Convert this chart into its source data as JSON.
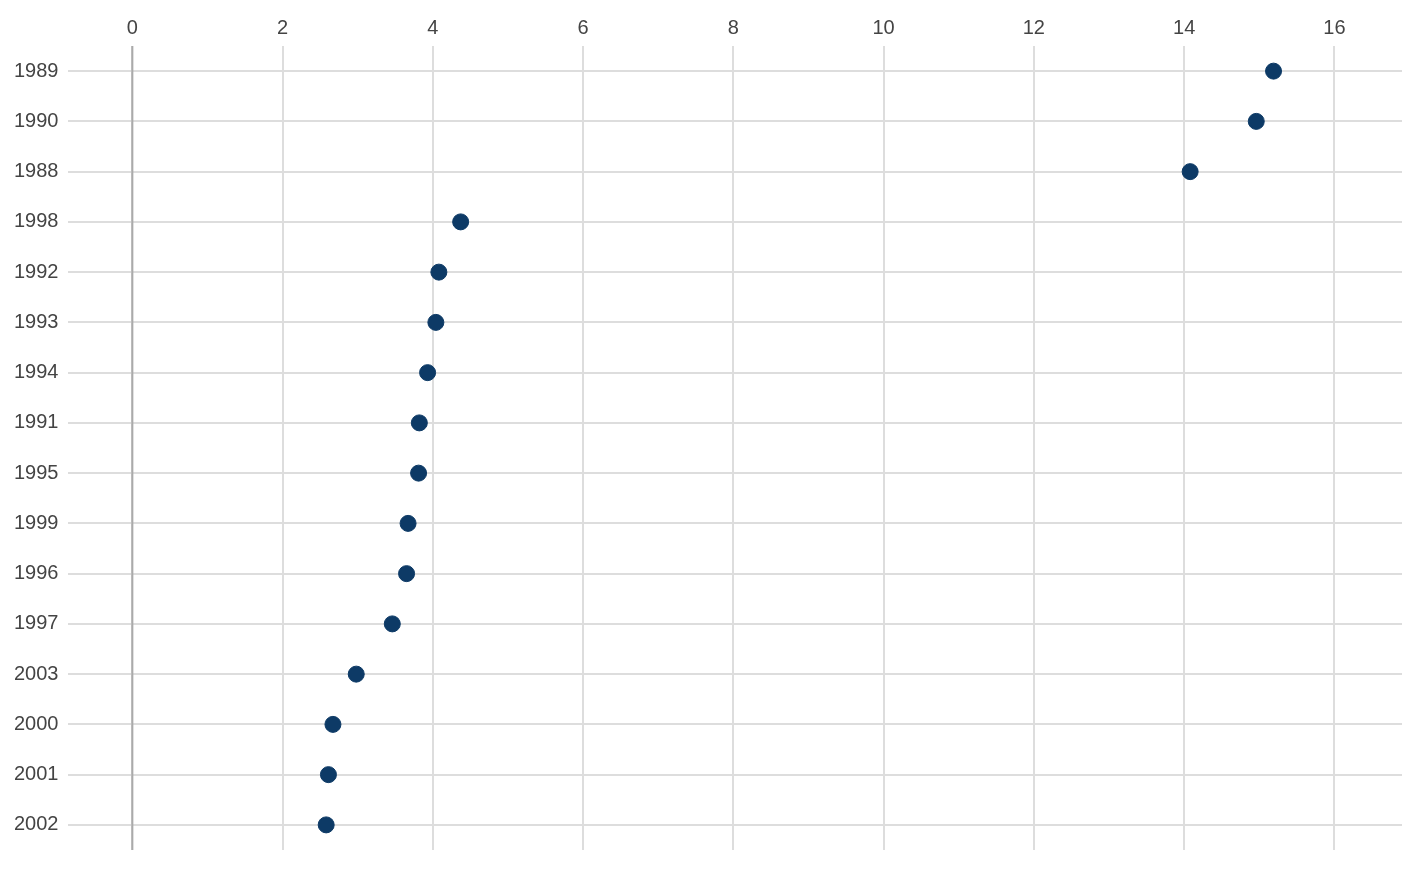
{
  "chart_data": {
    "type": "scatter",
    "orientation": "horizontal",
    "categories": [
      "1989",
      "1990",
      "1988",
      "1998",
      "1992",
      "1993",
      "1994",
      "1991",
      "1995",
      "1999",
      "1996",
      "1997",
      "2003",
      "2000",
      "2001",
      "2002"
    ],
    "values": [
      15.19,
      14.96,
      14.08,
      4.37,
      4.08,
      4.04,
      3.93,
      3.82,
      3.81,
      3.67,
      3.65,
      3.46,
      2.98,
      2.67,
      2.61,
      2.58
    ],
    "color": "#0d3a66",
    "marker": "circle",
    "xlim": [
      -0.85,
      16.9
    ],
    "xticks": [
      0,
      2,
      4,
      6,
      8,
      10,
      12,
      14,
      16
    ],
    "grid": true,
    "ref_lines": [
      {
        "axis": "x",
        "value": 0,
        "color": "#aaaaaa"
      }
    ]
  }
}
